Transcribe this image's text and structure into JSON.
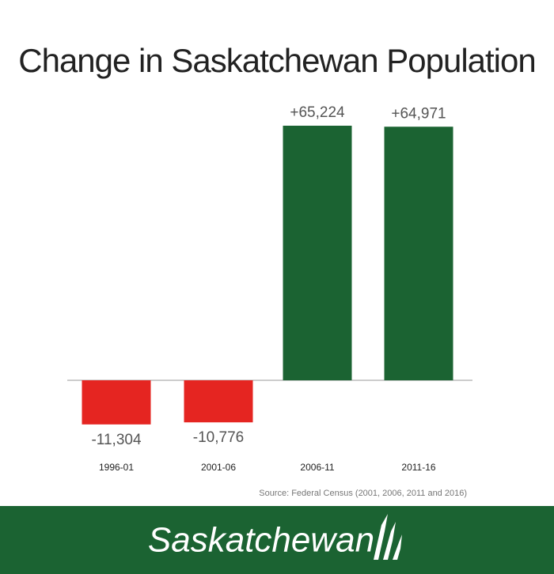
{
  "chart_data": {
    "type": "bar",
    "title": "Change in Saskatchewan Population",
    "categories": [
      "1996-01",
      "2001-06",
      "2006-11",
      "2011-16"
    ],
    "values": [
      -11304,
      -10776,
      65224,
      64971
    ],
    "value_labels": [
      "-11,304",
      "-10,776",
      "+65,224",
      "+64,971"
    ],
    "colors": [
      "#e52521",
      "#e52521",
      "#1b6332",
      "#1b6332"
    ],
    "source": "Source: Federal Census (2001, 2006, 2011 and 2016)"
  },
  "footer": {
    "logo": "Saskatchewan"
  }
}
